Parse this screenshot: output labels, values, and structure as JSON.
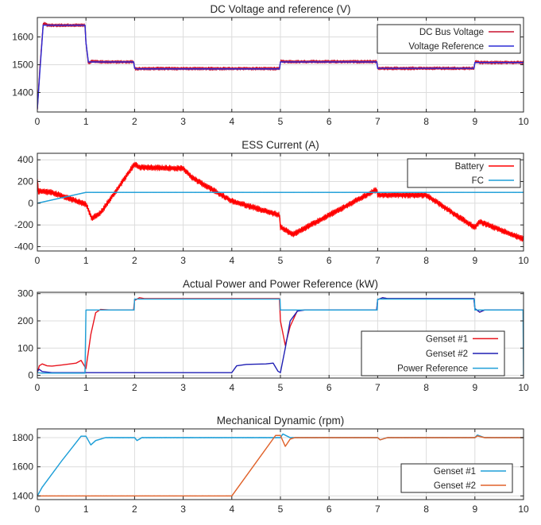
{
  "chart_data": [
    {
      "type": "line",
      "title": "DC Voltage and reference (V)",
      "xlabel": "",
      "ylabel": "",
      "xlim": [
        0,
        10
      ],
      "ylim": [
        1330,
        1670
      ],
      "xticks": [
        0,
        1,
        2,
        3,
        4,
        5,
        6,
        7,
        8,
        9,
        10
      ],
      "yticks": [
        1400,
        1500,
        1600
      ],
      "grid": true,
      "legend_position": "top-right",
      "series": [
        {
          "name": "DC Bus Voltage",
          "color": "#c8102e",
          "noise": 6,
          "x": [
            0,
            0.05,
            0.12,
            0.15,
            0.2,
            0.98,
            1.0,
            1.05,
            1.12,
            1.3,
            1.98,
            2.0,
            2.02,
            2.1,
            4.98,
            5.0,
            5.02,
            5.1,
            6.98,
            7.0,
            7.02,
            7.1,
            8.98,
            9.0,
            9.02,
            9.1,
            10.0
          ],
          "y": [
            1340,
            1480,
            1645,
            1650,
            1642,
            1642,
            1580,
            1505,
            1512,
            1510,
            1510,
            1490,
            1484,
            1486,
            1486,
            1510,
            1514,
            1511,
            1511,
            1490,
            1486,
            1487,
            1487,
            1508,
            1512,
            1508,
            1508
          ]
        },
        {
          "name": "Voltage Reference",
          "color": "#2b2bd6",
          "noise": 0,
          "x": [
            0,
            0.05,
            0.12,
            0.15,
            0.98,
            1.0,
            1.05,
            1.2,
            1.98,
            2.0,
            2.05,
            4.98,
            5.0,
            5.05,
            6.98,
            7.0,
            7.05,
            8.98,
            9.0,
            9.05,
            10.0
          ],
          "y": [
            1340,
            1470,
            1642,
            1642,
            1642,
            1580,
            1510,
            1510,
            1510,
            1488,
            1485,
            1485,
            1510,
            1510,
            1510,
            1487,
            1487,
            1487,
            1508,
            1508,
            1508
          ]
        }
      ]
    },
    {
      "type": "line",
      "title": "ESS Current (A)",
      "xlabel": "",
      "ylabel": "",
      "xlim": [
        0,
        10
      ],
      "ylim": [
        -440,
        460
      ],
      "xticks": [
        0,
        1,
        2,
        3,
        4,
        5,
        6,
        7,
        8,
        9,
        10
      ],
      "yticks": [
        -400,
        -200,
        0,
        200,
        400
      ],
      "grid": true,
      "legend_position": "top-right",
      "series": [
        {
          "name": "Battery",
          "color": "#ff0000",
          "noise": 28,
          "x": [
            0,
            0.02,
            0.3,
            1.0,
            1.05,
            1.12,
            1.3,
            2.0,
            2.1,
            3.0,
            3.2,
            4.0,
            4.98,
            5.0,
            5.25,
            6.98,
            7.0,
            7.05,
            8.0,
            8.98,
            9.0,
            9.1,
            10.0
          ],
          "y": [
            220,
            110,
            100,
            -10,
            -60,
            -140,
            -90,
            360,
            330,
            320,
            230,
            20,
            -110,
            -220,
            -290,
            125,
            80,
            75,
            75,
            -220,
            -220,
            -170,
            -330
          ]
        },
        {
          "name": "FC",
          "color": "#1f9fd8",
          "noise": 2,
          "x": [
            0,
            1.0,
            10.0
          ],
          "y": [
            0,
            100,
            100
          ]
        }
      ]
    },
    {
      "type": "line",
      "title": "Actual Power and Power Reference (kW)",
      "xlabel": "",
      "ylabel": "",
      "xlim": [
        0,
        10
      ],
      "ylim": [
        -10,
        305
      ],
      "xticks": [
        0,
        1,
        2,
        3,
        4,
        5,
        6,
        7,
        8,
        9,
        10
      ],
      "yticks": [
        0,
        100,
        200,
        300
      ],
      "grid": true,
      "legend_position": "bottom-right",
      "series": [
        {
          "name": "Genset #1",
          "color": "#e8141e",
          "noise": 0,
          "x": [
            0,
            0.04,
            0.1,
            0.2,
            0.3,
            0.5,
            0.8,
            0.9,
            1.0,
            1.1,
            1.2,
            1.3,
            1.5,
            1.98,
            2.0,
            2.1,
            2.2,
            4.98,
            5.0,
            5.1,
            5.2,
            5.35,
            5.5,
            6.98,
            7.0,
            7.1,
            7.2,
            8.98,
            9.0,
            9.1,
            9.2,
            10.0
          ],
          "y": [
            10,
            35,
            42,
            35,
            34,
            38,
            45,
            55,
            25,
            150,
            230,
            242,
            240,
            240,
            275,
            285,
            282,
            282,
            200,
            110,
            180,
            238,
            240,
            240,
            278,
            285,
            282,
            282,
            245,
            232,
            240,
            240
          ]
        },
        {
          "name": "Genset #2",
          "color": "#1f1fb4",
          "noise": 0,
          "x": [
            0,
            0.04,
            0.1,
            0.3,
            0.5,
            1.0,
            1.5,
            4.0,
            4.1,
            4.3,
            4.7,
            4.85,
            4.95,
            5.0,
            5.1,
            5.2,
            5.35,
            5.5,
            6.98,
            7.0,
            7.1,
            7.2,
            8.98,
            9.0,
            9.1,
            9.2,
            10.0
          ],
          "y": [
            15,
            22,
            14,
            10,
            10,
            10,
            10,
            10,
            35,
            40,
            42,
            45,
            15,
            10,
            100,
            200,
            236,
            240,
            240,
            278,
            285,
            282,
            282,
            245,
            232,
            240,
            240
          ]
        },
        {
          "name": "Power Reference",
          "color": "#1f9fd8",
          "noise": 0,
          "x": [
            0,
            0.1,
            0.98,
            1.0,
            1.99,
            2.0,
            4.99,
            5.0,
            6.99,
            7.0,
            8.99,
            9.0,
            9.99,
            10.0
          ],
          "y": [
            10,
            8,
            8,
            240,
            240,
            280,
            280,
            240,
            240,
            280,
            280,
            240,
            240,
            0
          ]
        }
      ]
    },
    {
      "type": "line",
      "title": "Mechanical Dynamic (rpm)",
      "xlabel": "",
      "ylabel": "",
      "xlim": [
        0,
        10
      ],
      "ylim": [
        1375,
        1860
      ],
      "xticks": [
        0,
        1,
        2,
        3,
        4,
        5,
        6,
        7,
        8,
        9,
        10
      ],
      "yticks": [
        1400,
        1600,
        1800
      ],
      "grid": true,
      "legend_position": "bottom-right",
      "series": [
        {
          "name": "Genset #1",
          "color": "#1f9fd8",
          "noise": 2,
          "x": [
            0,
            0.1,
            0.5,
            0.9,
            1.0,
            1.1,
            1.2,
            1.4,
            2.0,
            2.05,
            2.15,
            3.0,
            5.0,
            5.05,
            5.2,
            7.0,
            7.05,
            7.2,
            9.0,
            9.05,
            9.2,
            10.0
          ],
          "y": [
            1400,
            1460,
            1640,
            1810,
            1810,
            1750,
            1780,
            1800,
            1800,
            1780,
            1800,
            1800,
            1800,
            1825,
            1800,
            1800,
            1785,
            1800,
            1800,
            1818,
            1800,
            1800
          ]
        },
        {
          "name": "Genset #2",
          "color": "#e0622a",
          "noise": 1,
          "x": [
            0,
            4.0,
            4.9,
            5.0,
            5.1,
            5.2,
            5.3,
            7.0,
            7.05,
            7.2,
            9.0,
            9.05,
            9.2,
            10.0
          ],
          "y": [
            1400,
            1400,
            1815,
            1815,
            1740,
            1790,
            1800,
            1800,
            1785,
            1800,
            1800,
            1812,
            1800,
            1800
          ]
        }
      ]
    }
  ]
}
